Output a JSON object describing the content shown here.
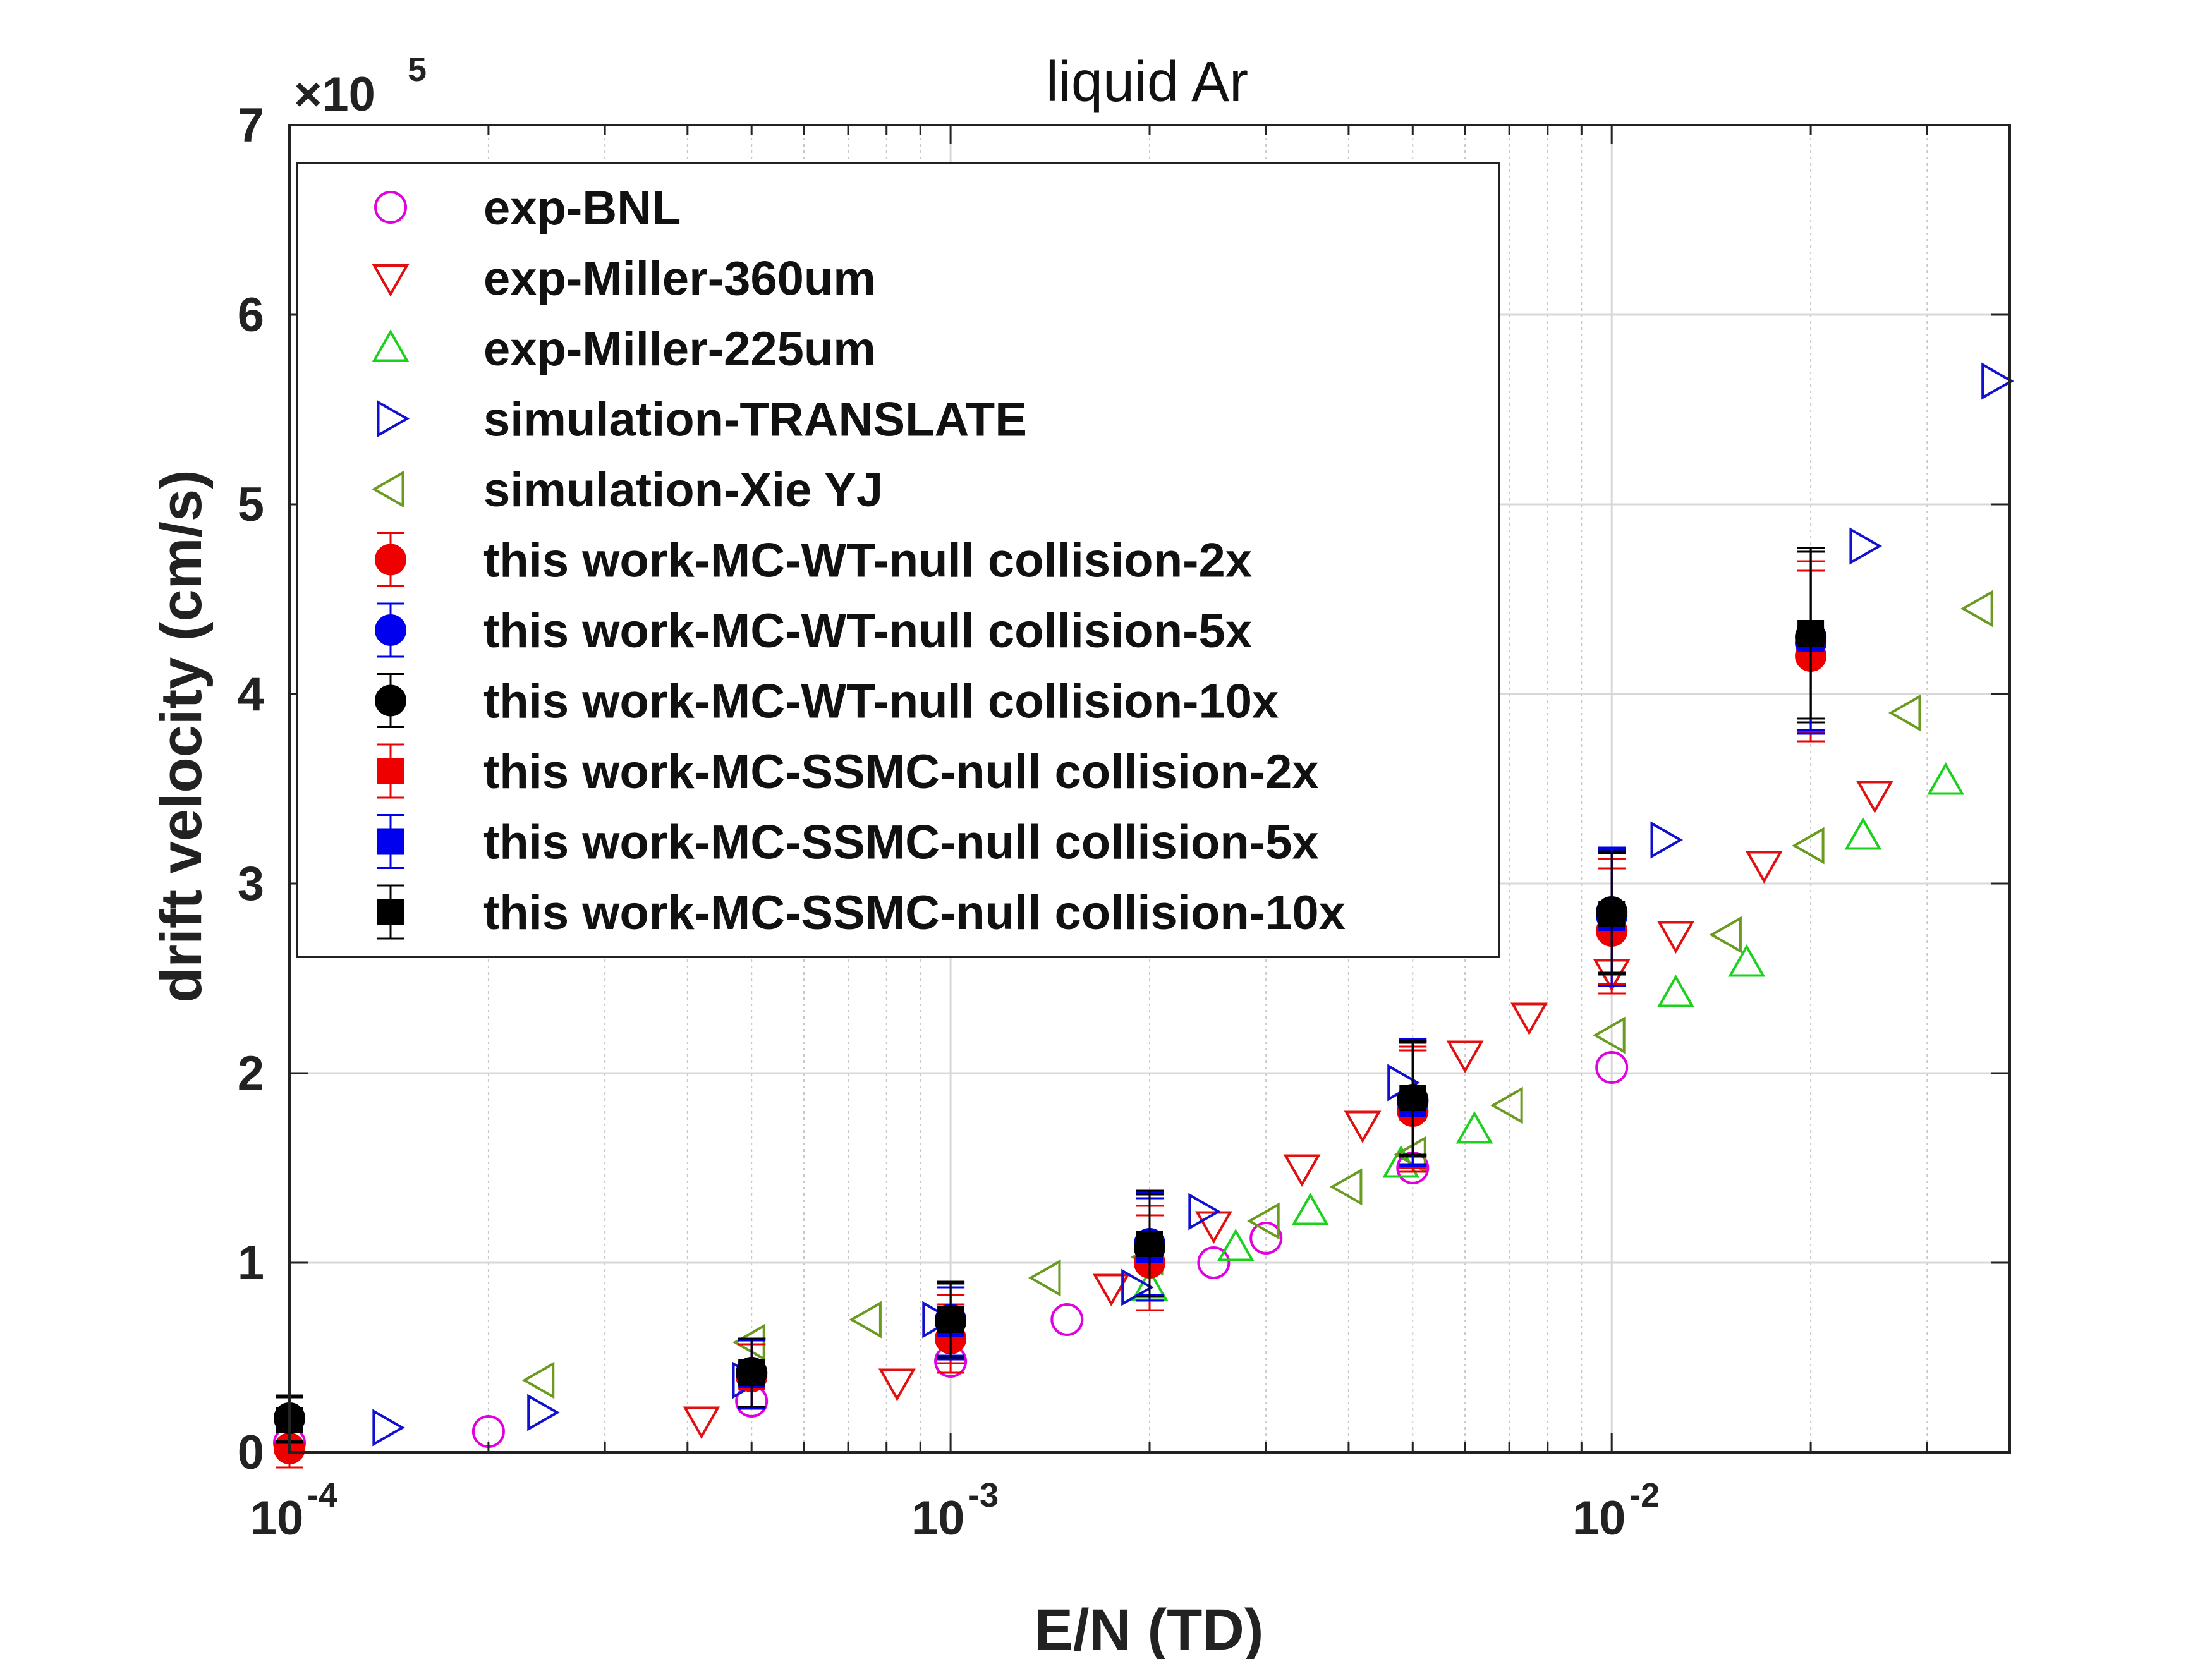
{
  "chart_data": {
    "type": "scatter",
    "title": "liquid Ar",
    "xlabel": "E/N (TD)",
    "ylabel": "drift velocity (cm/s)",
    "xscale": "log",
    "xlim": [
      0.0001,
      0.04
    ],
    "ylim": [
      0,
      700000
    ],
    "y_multiplier_label": "×10",
    "y_multiplier_exp": "5",
    "x_ticks": [
      {
        "base": "10",
        "exp": "-4",
        "value": 0.0001
      },
      {
        "base": "10",
        "exp": "-3",
        "value": 0.001
      },
      {
        "base": "10",
        "exp": "-2",
        "value": 0.01
      }
    ],
    "y_ticks": [
      "0",
      "1",
      "2",
      "3",
      "4",
      "5",
      "6",
      "7"
    ],
    "grid": true,
    "legend_position": "top-left",
    "series": [
      {
        "name": "exp-BNL",
        "marker": "circle-open",
        "color": "#e000e0",
        "points": [
          [
            0.0001,
            5000
          ],
          [
            0.0002,
            11000
          ],
          [
            0.0005,
            27000
          ],
          [
            0.001,
            48000
          ],
          [
            0.0015,
            70000
          ],
          [
            0.0025,
            100000
          ],
          [
            0.003,
            113000
          ],
          [
            0.005,
            150000
          ],
          [
            0.01,
            203000
          ]
        ]
      },
      {
        "name": "exp-Miller-360um",
        "marker": "triangle-down-open",
        "color": "#e01010",
        "points": [
          [
            0.00042,
            17000
          ],
          [
            0.00083,
            37000
          ],
          [
            0.00175,
            87000
          ],
          [
            0.0025,
            120000
          ],
          [
            0.0034,
            150000
          ],
          [
            0.0042,
            173000
          ],
          [
            0.006,
            210000
          ],
          [
            0.0075,
            230000
          ],
          [
            0.01,
            253000
          ],
          [
            0.0125,
            273000
          ],
          [
            0.017,
            310000
          ],
          [
            0.025,
            347000
          ]
        ]
      },
      {
        "name": "exp-Miller-225um",
        "marker": "triangle-up-open",
        "color": "#1ed01e",
        "points": [
          [
            0.002,
            87000
          ],
          [
            0.0027,
            108000
          ],
          [
            0.0035,
            127000
          ],
          [
            0.0048,
            152000
          ],
          [
            0.0062,
            170000
          ],
          [
            0.0125,
            242000
          ],
          [
            0.016,
            258000
          ],
          [
            0.024,
            325000
          ],
          [
            0.032,
            354000
          ]
        ]
      },
      {
        "name": "simulation-TRANSLATE",
        "marker": "triangle-right-open",
        "color": "#1010d0",
        "points": [
          [
            0.00014,
            13000
          ],
          [
            0.00024,
            21000
          ],
          [
            0.00049,
            38000
          ],
          [
            0.00095,
            70000
          ],
          [
            0.0019,
            87000
          ],
          [
            0.0024,
            127000
          ],
          [
            0.0048,
            195000
          ],
          [
            0.012,
            323000
          ],
          [
            0.024,
            478000
          ],
          [
            0.038,
            565000
          ]
        ]
      },
      {
        "name": "simulation-Xie YJ",
        "marker": "triangle-left-open",
        "color": "#6a9a20",
        "points": [
          [
            0.00024,
            38000
          ],
          [
            0.0005,
            58000
          ],
          [
            0.00075,
            70000
          ],
          [
            0.0014,
            92000
          ],
          [
            0.002,
            103000
          ],
          [
            0.003,
            122000
          ],
          [
            0.004,
            140000
          ],
          [
            0.005,
            157000
          ],
          [
            0.007,
            183000
          ],
          [
            0.01,
            220000
          ],
          [
            0.015,
            273000
          ],
          [
            0.02,
            320000
          ],
          [
            0.028,
            390000
          ],
          [
            0.036,
            445000
          ]
        ]
      },
      {
        "name": "this work-MC-WT-null collision-2x",
        "marker": "circle-filled",
        "color": "#ee0000",
        "points": [
          [
            0.0001,
            2000,
            10000
          ],
          [
            0.0005,
            40000,
            17000
          ],
          [
            0.001,
            60000,
            18000
          ],
          [
            0.002,
            100000,
            25000
          ],
          [
            0.005,
            180000,
            32000
          ],
          [
            0.01,
            275000,
            33000
          ],
          [
            0.02,
            420000,
            45000
          ]
        ]
      },
      {
        "name": "this work-MC-WT-null collision-5x",
        "marker": "circle-filled",
        "color": "#0000ee",
        "points": [
          [
            0.0001,
            18000,
            12000
          ],
          [
            0.0005,
            42000,
            18000
          ],
          [
            0.001,
            70000,
            19000
          ],
          [
            0.002,
            110000,
            27000
          ],
          [
            0.005,
            185000,
            33000
          ],
          [
            0.01,
            283000,
            36000
          ],
          [
            0.02,
            427000,
            48000
          ]
        ]
      },
      {
        "name": "this work-MC-WT-null collision-10x",
        "marker": "circle-filled",
        "color": "#000000",
        "points": [
          [
            0.0001,
            18000,
            12000
          ],
          [
            0.0005,
            42000,
            18000
          ],
          [
            0.001,
            69000,
            20000
          ],
          [
            0.002,
            108000,
            28000
          ],
          [
            0.005,
            186000,
            30000
          ],
          [
            0.01,
            285000,
            32000
          ],
          [
            0.02,
            430000,
            45000
          ]
        ]
      },
      {
        "name": "this work-MC-SSMC-null collision-2x",
        "marker": "square-filled",
        "color": "#ee0000",
        "points": [
          [
            0.0005,
            40000,
            17000
          ],
          [
            0.001,
            65000,
            18000
          ],
          [
            0.002,
            105000,
            25000
          ],
          [
            0.005,
            182000,
            32000
          ],
          [
            0.01,
            280000,
            33000
          ],
          [
            0.02,
            425000,
            45000
          ]
        ]
      },
      {
        "name": "this work-MC-SSMC-null collision-5x",
        "marker": "square-filled",
        "color": "#0000ee",
        "points": [
          [
            0.0005,
            41000,
            18000
          ],
          [
            0.001,
            68000,
            19000
          ],
          [
            0.002,
            107000,
            27000
          ],
          [
            0.005,
            184000,
            33000
          ],
          [
            0.01,
            282000,
            36000
          ],
          [
            0.02,
            429000,
            48000
          ]
        ]
      },
      {
        "name": "this work-MC-SSMC-null collision-10x",
        "marker": "square-filled",
        "color": "#000000",
        "points": [
          [
            0.0001,
            17000,
            12000
          ],
          [
            0.0005,
            42000,
            18000
          ],
          [
            0.001,
            70000,
            20000
          ],
          [
            0.002,
            110000,
            28000
          ],
          [
            0.005,
            187000,
            30000
          ],
          [
            0.01,
            284000,
            32000
          ],
          [
            0.02,
            432000,
            45000
          ]
        ]
      }
    ]
  }
}
